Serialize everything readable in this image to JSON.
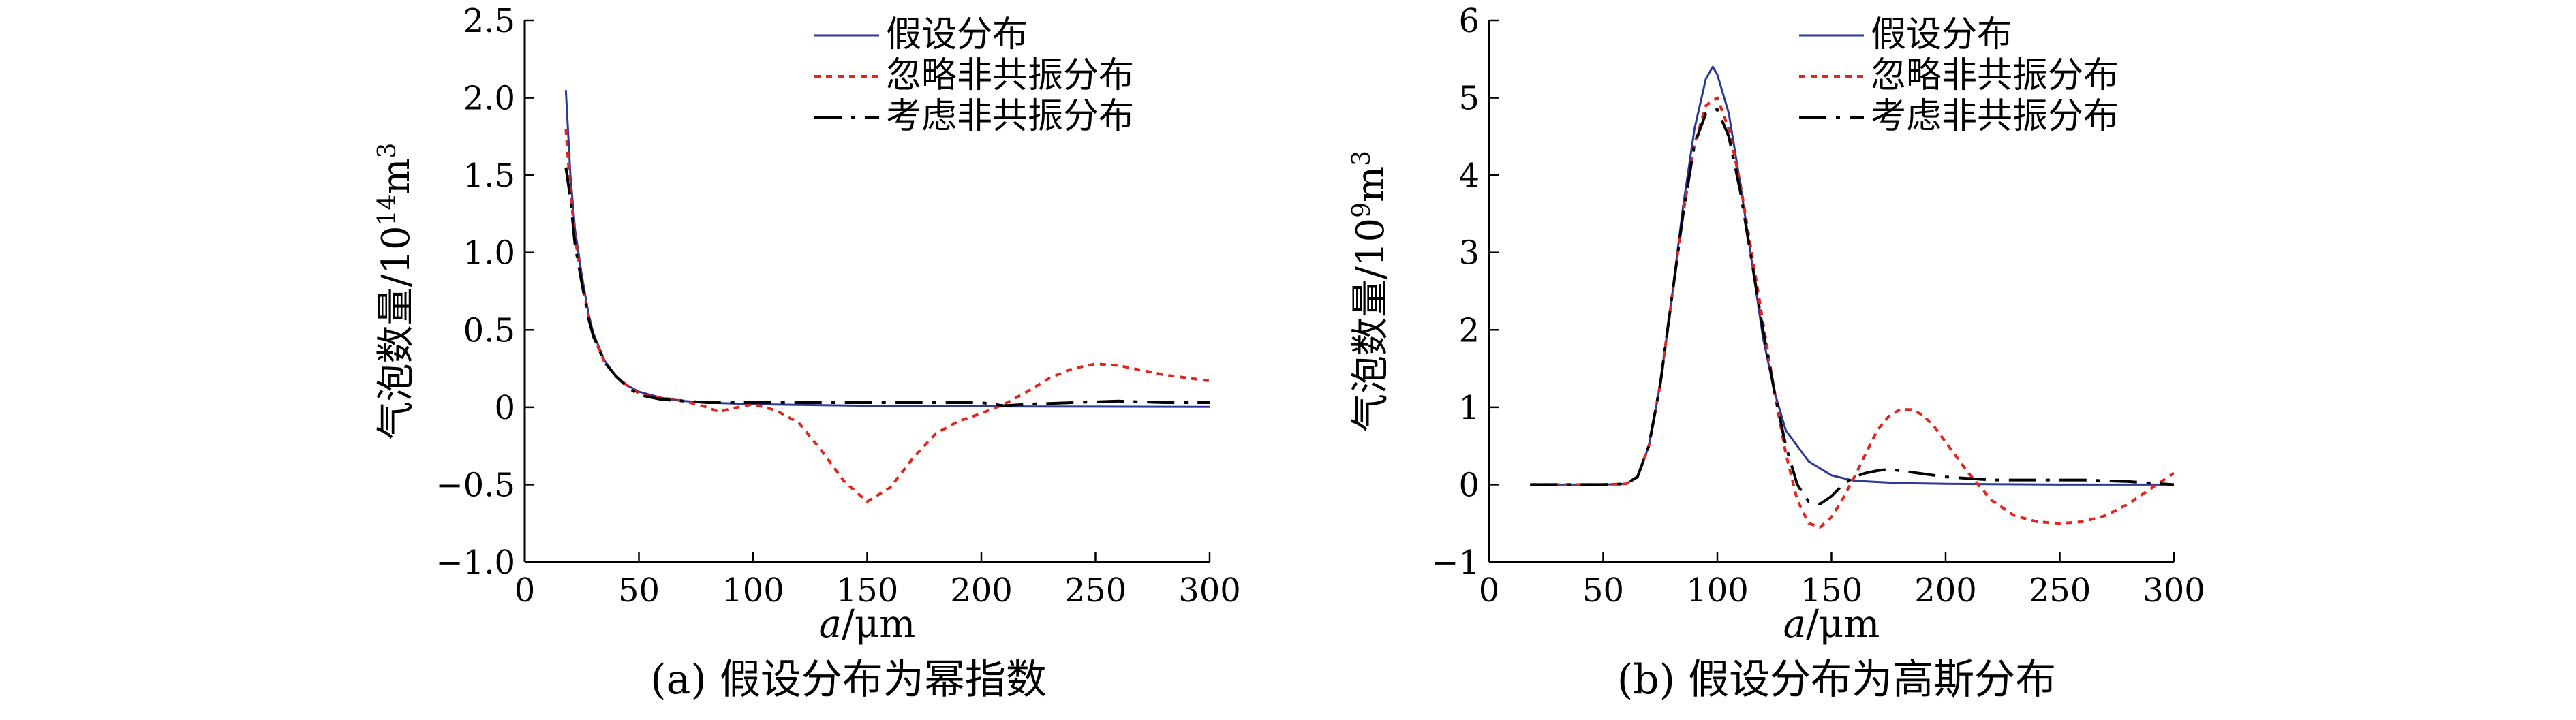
{
  "chart_data": [
    {
      "type": "line",
      "id": "a",
      "caption": "(a) 假设分布为幂指数",
      "xlabel_italic": "a",
      "xlabel_unit": "/μm",
      "ylabel_main": "气泡数量/10",
      "ylabel_exp": "14",
      "ylabel_unit": "m",
      "ylabel_unit_exp": "3",
      "xlim": [
        0,
        300
      ],
      "ylim": [
        -1.0,
        2.5
      ],
      "xticks": [
        0,
        50,
        100,
        150,
        200,
        250,
        300
      ],
      "xtick_labels": [
        "0",
        "50",
        "100",
        "150",
        "200",
        "250",
        "300"
      ],
      "yticks": [
        -1.0,
        -0.5,
        0,
        0.5,
        1.0,
        1.5,
        2.0,
        2.5
      ],
      "ytick_labels": [
        "−1.0",
        "−0.5",
        "0",
        "0.5",
        "1.0",
        "1.5",
        "2.0",
        "2.5"
      ],
      "legend": [
        "假设分布",
        "忽略非共振分布",
        "考虑非共振分布"
      ],
      "series": [
        {
          "name": "假设分布",
          "color": "#2a3a9c",
          "style": "solid",
          "x": [
            18,
            20,
            22,
            25,
            28,
            30,
            35,
            40,
            45,
            50,
            60,
            70,
            80,
            100,
            150,
            200,
            250,
            300
          ],
          "y": [
            2.05,
            1.5,
            1.15,
            0.85,
            0.6,
            0.48,
            0.3,
            0.2,
            0.14,
            0.1,
            0.06,
            0.04,
            0.03,
            0.02,
            0.01,
            0.006,
            0.004,
            0.003
          ]
        },
        {
          "name": "忽略非共振分布",
          "color": "#e0261e",
          "style": "dotted",
          "x": [
            18,
            20,
            22,
            25,
            28,
            30,
            35,
            40,
            45,
            50,
            55,
            60,
            70,
            80,
            85,
            90,
            100,
            110,
            120,
            130,
            140,
            150,
            160,
            170,
            180,
            190,
            200,
            210,
            220,
            230,
            240,
            250,
            260,
            270,
            280,
            290,
            300
          ],
          "y": [
            1.8,
            1.4,
            1.1,
            0.82,
            0.58,
            0.46,
            0.29,
            0.2,
            0.14,
            0.09,
            0.07,
            0.06,
            0.04,
            0.0,
            -0.03,
            -0.01,
            0.02,
            -0.02,
            -0.1,
            -0.28,
            -0.48,
            -0.61,
            -0.52,
            -0.33,
            -0.17,
            -0.09,
            -0.04,
            0.02,
            0.1,
            0.19,
            0.25,
            0.28,
            0.27,
            0.24,
            0.21,
            0.19,
            0.17
          ]
        },
        {
          "name": "考虑非共振分布",
          "color": "#000000",
          "style": "dashdot",
          "x": [
            18,
            20,
            22,
            25,
            28,
            30,
            35,
            40,
            45,
            50,
            60,
            70,
            80,
            90,
            100,
            120,
            150,
            180,
            200,
            210,
            220,
            240,
            260,
            280,
            300
          ],
          "y": [
            1.55,
            1.35,
            1.05,
            0.8,
            0.57,
            0.46,
            0.29,
            0.2,
            0.13,
            0.08,
            0.05,
            0.04,
            0.03,
            0.03,
            0.03,
            0.03,
            0.03,
            0.03,
            0.03,
            0.01,
            0.02,
            0.03,
            0.04,
            0.03,
            0.03
          ]
        }
      ]
    },
    {
      "type": "line",
      "id": "b",
      "caption": "(b) 假设分布为高斯分布",
      "xlabel_italic": "a",
      "xlabel_unit": "/μm",
      "ylabel_main": "气泡数量/10",
      "ylabel_exp": "9",
      "ylabel_unit": "m",
      "ylabel_unit_exp": "3",
      "xlim": [
        0,
        300
      ],
      "ylim": [
        -1,
        6
      ],
      "xticks": [
        0,
        50,
        100,
        150,
        200,
        250,
        300
      ],
      "xtick_labels": [
        "0",
        "50",
        "100",
        "150",
        "200",
        "250",
        "300"
      ],
      "yticks": [
        -1,
        0,
        1,
        2,
        3,
        4,
        5,
        6
      ],
      "ytick_labels": [
        "−1",
        "0",
        "1",
        "2",
        "3",
        "4",
        "5",
        "6"
      ],
      "legend": [
        "假设分布",
        "忽略非共振分布",
        "考虑非共振分布"
      ],
      "series": [
        {
          "name": "假设分布",
          "color": "#2a3a9c",
          "style": "solid",
          "x": [
            18,
            30,
            50,
            60,
            65,
            70,
            75,
            80,
            85,
            90,
            95,
            98,
            100,
            105,
            110,
            115,
            120,
            125,
            130,
            140,
            150,
            160,
            180,
            200,
            250,
            300
          ],
          "y": [
            0,
            0,
            0,
            0.01,
            0.1,
            0.5,
            1.3,
            2.4,
            3.6,
            4.6,
            5.25,
            5.4,
            5.3,
            4.8,
            3.9,
            2.9,
            1.9,
            1.2,
            0.7,
            0.3,
            0.12,
            0.05,
            0.02,
            0.01,
            0.0,
            0.0
          ]
        },
        {
          "name": "忽略非共振分布",
          "color": "#e0261e",
          "style": "dotted",
          "x": [
            18,
            30,
            50,
            60,
            65,
            70,
            75,
            80,
            85,
            90,
            95,
            100,
            105,
            110,
            115,
            120,
            125,
            130,
            135,
            140,
            145,
            150,
            155,
            160,
            165,
            170,
            175,
            180,
            185,
            190,
            195,
            200,
            210,
            220,
            230,
            240,
            250,
            260,
            270,
            280,
            290,
            300
          ],
          "y": [
            0,
            0,
            0,
            0.01,
            0.1,
            0.5,
            1.3,
            2.4,
            3.5,
            4.4,
            4.9,
            5.0,
            4.6,
            3.9,
            3.0,
            2.1,
            1.2,
            0.4,
            -0.2,
            -0.5,
            -0.55,
            -0.42,
            -0.18,
            0.1,
            0.4,
            0.7,
            0.88,
            0.97,
            0.97,
            0.9,
            0.75,
            0.55,
            0.15,
            -0.2,
            -0.4,
            -0.48,
            -0.5,
            -0.48,
            -0.4,
            -0.25,
            -0.05,
            0.15
          ]
        },
        {
          "name": "考虑非共振分布",
          "color": "#000000",
          "style": "dashdot",
          "x": [
            18,
            30,
            50,
            60,
            65,
            70,
            75,
            80,
            85,
            90,
            95,
            100,
            105,
            110,
            115,
            120,
            125,
            130,
            135,
            140,
            145,
            150,
            155,
            160,
            165,
            170,
            175,
            180,
            190,
            200,
            220,
            240,
            260,
            280,
            300
          ],
          "y": [
            0,
            0,
            0,
            0.01,
            0.1,
            0.5,
            1.3,
            2.4,
            3.5,
            4.4,
            4.8,
            4.85,
            4.5,
            3.8,
            2.9,
            2.0,
            1.2,
            0.5,
            0.0,
            -0.22,
            -0.25,
            -0.15,
            0.0,
            0.1,
            0.15,
            0.18,
            0.2,
            0.18,
            0.14,
            0.1,
            0.06,
            0.06,
            0.06,
            0.04,
            0.0
          ]
        }
      ]
    }
  ]
}
